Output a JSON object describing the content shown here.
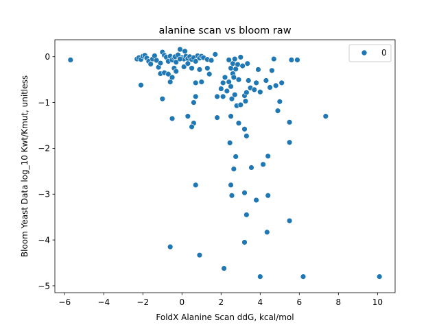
{
  "chart_data": {
    "type": "scatter",
    "title": "alanine scan vs bloom raw",
    "xlabel": "FoldX Alanine Scan ddG, kcal/mol",
    "ylabel": "Bloom Yeast Data log_10 Kwt/Kmut, unitless",
    "xlim": [
      -6.5,
      10.9
    ],
    "ylim": [
      -5.15,
      0.37
    ],
    "xticks": [
      -6,
      -4,
      -2,
      0,
      2,
      4,
      6,
      8,
      10
    ],
    "yticks": [
      0,
      -1,
      -2,
      -3,
      -4,
      -5
    ],
    "grid": false,
    "legend": {
      "position": "top-right",
      "entries": [
        "0"
      ]
    },
    "series": [
      {
        "name": "0",
        "color": "#1f77b4",
        "points": [
          [
            -5.7,
            -0.07
          ],
          [
            -2.3,
            -0.05
          ],
          [
            -2.2,
            -0.02
          ],
          [
            -2.1,
            -0.06
          ],
          [
            -2.0,
            0.01
          ],
          [
            -1.9,
            0.03
          ],
          [
            -1.8,
            -0.03
          ],
          [
            -1.7,
            -0.1
          ],
          [
            -1.6,
            -0.16
          ],
          [
            -1.5,
            -0.05
          ],
          [
            -1.4,
            0.02
          ],
          [
            -1.3,
            -0.08
          ],
          [
            -1.2,
            -0.23
          ],
          [
            -1.1,
            -0.14
          ],
          [
            -1.0,
            0.1
          ],
          [
            -0.9,
            0.03
          ],
          [
            -0.8,
            -0.01
          ],
          [
            -0.7,
            -0.1
          ],
          [
            -0.6,
            0.01
          ],
          [
            -0.5,
            -0.07
          ],
          [
            -0.4,
            -0.02
          ],
          [
            -0.35,
            0.0
          ],
          [
            -0.3,
            -0.12
          ],
          [
            -0.2,
            0.04
          ],
          [
            -0.1,
            0.16
          ],
          [
            0.0,
            -0.02
          ],
          [
            0.1,
            -0.05
          ],
          [
            0.15,
            0.12
          ],
          [
            0.2,
            0.01
          ],
          [
            0.3,
            -0.04
          ],
          [
            0.4,
            0.0
          ],
          [
            0.5,
            -0.06
          ],
          [
            0.6,
            -0.02
          ],
          [
            0.7,
            -0.1
          ],
          [
            0.8,
            0.02
          ],
          [
            0.9,
            -0.03
          ],
          [
            1.0,
            0.01
          ],
          [
            1.1,
            -0.02
          ],
          [
            1.3,
            -0.06
          ],
          [
            1.5,
            -0.08
          ],
          [
            1.7,
            0.05
          ],
          [
            -1.1,
            -0.37
          ],
          [
            -0.9,
            -0.35
          ],
          [
            -0.7,
            -0.38
          ],
          [
            -0.6,
            -0.55
          ],
          [
            -0.5,
            -0.45
          ],
          [
            -0.4,
            -0.25
          ],
          [
            -0.3,
            -0.32
          ],
          [
            -0.1,
            -0.05
          ],
          [
            0.1,
            -0.22
          ],
          [
            0.3,
            -0.15
          ],
          [
            0.5,
            -0.25
          ],
          [
            0.7,
            -0.57
          ],
          [
            0.9,
            -0.28
          ],
          [
            1.0,
            -0.55
          ],
          [
            1.3,
            -0.25
          ],
          [
            1.4,
            -0.38
          ],
          [
            -2.1,
            -0.62
          ],
          [
            -1.0,
            -0.92
          ],
          [
            -0.5,
            -1.35
          ],
          [
            0.6,
            -1.0
          ],
          [
            0.7,
            -0.87
          ],
          [
            0.3,
            -1.3
          ],
          [
            0.6,
            -1.45
          ],
          [
            0.5,
            -1.53
          ],
          [
            1.8,
            -0.87
          ],
          [
            1.8,
            -1.33
          ],
          [
            2.0,
            -0.7
          ],
          [
            2.1,
            -0.57
          ],
          [
            2.2,
            -0.45
          ],
          [
            2.1,
            -0.87
          ],
          [
            2.3,
            -0.75
          ],
          [
            2.4,
            -0.07
          ],
          [
            2.4,
            -0.55
          ],
          [
            2.5,
            -0.25
          ],
          [
            2.5,
            -0.65
          ],
          [
            2.55,
            -0.92
          ],
          [
            2.6,
            -0.37
          ],
          [
            2.6,
            -0.15
          ],
          [
            2.65,
            -0.45
          ],
          [
            2.7,
            -0.83
          ],
          [
            2.7,
            -0.05
          ],
          [
            2.75,
            -0.27
          ],
          [
            2.8,
            -1.07
          ],
          [
            2.85,
            -0.17
          ],
          [
            2.9,
            -0.5
          ],
          [
            3.0,
            -0.01
          ],
          [
            3.0,
            -1.05
          ],
          [
            3.1,
            -0.2
          ],
          [
            3.2,
            -0.85
          ],
          [
            3.25,
            -0.97
          ],
          [
            3.3,
            -0.78
          ],
          [
            3.35,
            -0.15
          ],
          [
            3.4,
            -0.52
          ],
          [
            3.5,
            -0.68
          ],
          [
            3.7,
            -0.72
          ],
          [
            3.8,
            -0.57
          ],
          [
            3.9,
            -0.28
          ],
          [
            4.0,
            -0.77
          ],
          [
            4.3,
            -0.52
          ],
          [
            4.5,
            -0.67
          ],
          [
            4.6,
            -0.3
          ],
          [
            4.7,
            -0.05
          ],
          [
            4.8,
            -0.63
          ],
          [
            4.9,
            -1.18
          ],
          [
            5.0,
            -0.98
          ],
          [
            5.1,
            -0.57
          ],
          [
            5.5,
            -1.43
          ],
          [
            5.6,
            -0.07
          ],
          [
            5.9,
            -0.07
          ],
          [
            7.35,
            -1.3
          ],
          [
            2.45,
            -1.88
          ],
          [
            2.5,
            -1.3
          ],
          [
            2.9,
            -1.45
          ],
          [
            2.75,
            -2.18
          ],
          [
            2.65,
            -2.45
          ],
          [
            3.2,
            -1.58
          ],
          [
            3.3,
            -1.73
          ],
          [
            3.55,
            -2.42
          ],
          [
            4.15,
            -2.35
          ],
          [
            4.4,
            -2.17
          ],
          [
            5.5,
            -1.87
          ],
          [
            0.7,
            -2.8
          ],
          [
            2.5,
            -2.8
          ],
          [
            2.55,
            -3.03
          ],
          [
            3.2,
            -2.97
          ],
          [
            3.8,
            -3.13
          ],
          [
            4.4,
            -3.03
          ],
          [
            3.3,
            -3.45
          ],
          [
            5.5,
            -3.58
          ],
          [
            4.35,
            -3.83
          ],
          [
            3.2,
            -4.05
          ],
          [
            -0.6,
            -4.15
          ],
          [
            0.9,
            -4.33
          ],
          [
            2.15,
            -4.62
          ],
          [
            4.0,
            -4.8
          ],
          [
            6.2,
            -4.8
          ],
          [
            10.1,
            -4.8
          ]
        ]
      }
    ]
  }
}
